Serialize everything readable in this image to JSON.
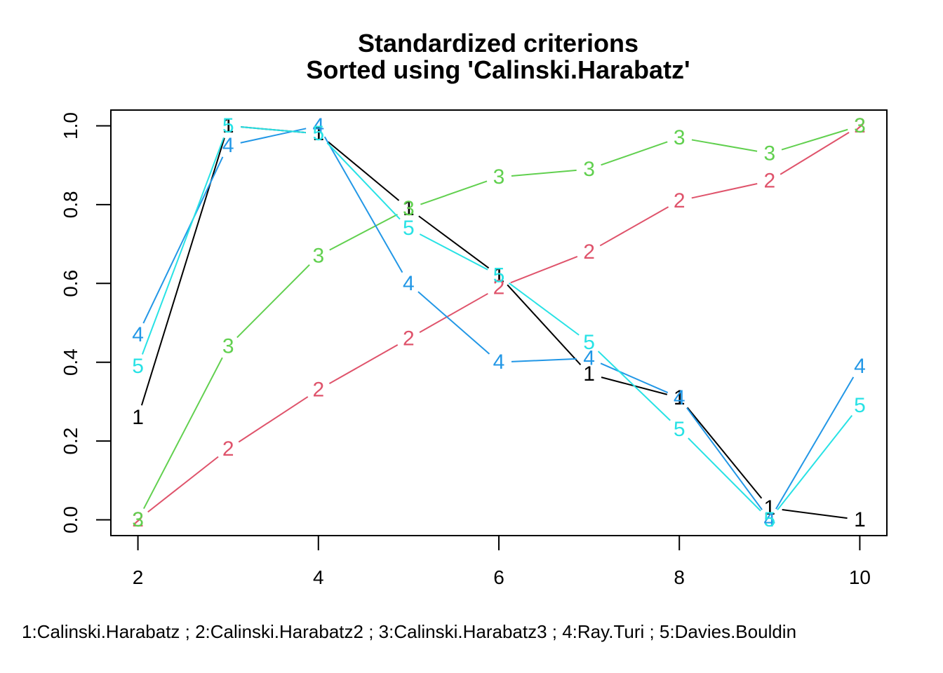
{
  "chart_data": {
    "type": "line",
    "title": "Standardized criterions",
    "subtitle": "Sorted using 'Calinski.Harabatz'",
    "xlabel": "",
    "ylabel": "",
    "x": [
      2,
      3,
      4,
      5,
      6,
      7,
      8,
      9,
      10
    ],
    "xlim": [
      1.7,
      10.3
    ],
    "ylim": [
      -0.04,
      1.04
    ],
    "x_ticks": [
      "2",
      "4",
      "6",
      "8",
      "10"
    ],
    "y_ticks": [
      "0.0",
      "0.2",
      "0.4",
      "0.6",
      "0.8",
      "1.0"
    ],
    "grid": false,
    "series": [
      {
        "name": "Calinski.Harabatz",
        "marker": "1",
        "color": "#000000",
        "values": [
          0.26,
          1.0,
          0.98,
          0.79,
          0.62,
          0.37,
          0.31,
          0.03,
          0.0
        ]
      },
      {
        "name": "Calinski.Harabatz2",
        "marker": "2",
        "color": "#DF536B",
        "values": [
          0.0,
          0.18,
          0.33,
          0.46,
          0.59,
          0.68,
          0.81,
          0.86,
          1.0
        ]
      },
      {
        "name": "Calinski.Harabatz3",
        "marker": "3",
        "color": "#61D04F",
        "values": [
          0.0,
          0.44,
          0.67,
          0.79,
          0.87,
          0.89,
          0.97,
          0.93,
          1.0
        ]
      },
      {
        "name": "Ray.Turi",
        "marker": "4",
        "color": "#2297E6",
        "values": [
          0.47,
          0.95,
          1.0,
          0.6,
          0.4,
          0.41,
          0.31,
          0.0,
          0.39
        ]
      },
      {
        "name": "Davies.Bouldin",
        "marker": "5",
        "color": "#28E2E5",
        "values": [
          0.39,
          1.0,
          0.98,
          0.74,
          0.62,
          0.45,
          0.23,
          0.0,
          0.29
        ]
      }
    ],
    "footnote": "1:Calinski.Harabatz ; 2:Calinski.Harabatz2 ; 3:Calinski.Harabatz3 ; 4:Ray.Turi ; 5:Davies.Bouldin"
  }
}
